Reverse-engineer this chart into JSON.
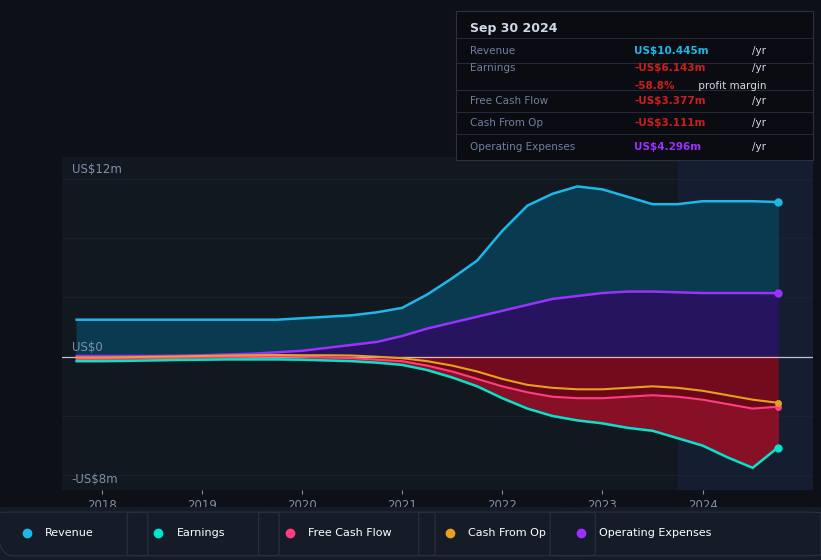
{
  "background_color": "#0d1117",
  "plot_bg_color": "#111820",
  "ylabel_top": "US$12m",
  "ylabel_bottom": "-US$8m",
  "ylabel_zero": "US$0",
  "x_ticks": [
    2018,
    2019,
    2020,
    2021,
    2022,
    2023,
    2024
  ],
  "x_min": 2017.6,
  "x_max": 2025.1,
  "y_min": -9.0,
  "y_max": 13.5,
  "years": [
    2017.75,
    2018.0,
    2018.25,
    2018.5,
    2018.75,
    2019.0,
    2019.25,
    2019.5,
    2019.75,
    2020.0,
    2020.25,
    2020.5,
    2020.75,
    2021.0,
    2021.25,
    2021.5,
    2021.75,
    2022.0,
    2022.25,
    2022.5,
    2022.75,
    2023.0,
    2023.25,
    2023.5,
    2023.75,
    2024.0,
    2024.25,
    2024.5,
    2024.75
  ],
  "revenue": [
    2.5,
    2.5,
    2.5,
    2.5,
    2.5,
    2.5,
    2.5,
    2.5,
    2.5,
    2.6,
    2.7,
    2.8,
    3.0,
    3.3,
    4.2,
    5.3,
    6.5,
    8.5,
    10.2,
    11.0,
    11.5,
    11.3,
    10.8,
    10.3,
    10.3,
    10.5,
    10.5,
    10.5,
    10.445
  ],
  "op_expenses": [
    0.05,
    0.05,
    0.05,
    0.05,
    0.07,
    0.1,
    0.15,
    0.2,
    0.3,
    0.4,
    0.6,
    0.8,
    1.0,
    1.4,
    1.9,
    2.3,
    2.7,
    3.1,
    3.5,
    3.9,
    4.1,
    4.3,
    4.4,
    4.4,
    4.35,
    4.3,
    4.3,
    4.3,
    4.296
  ],
  "earnings": [
    -0.3,
    -0.3,
    -0.28,
    -0.25,
    -0.22,
    -0.2,
    -0.18,
    -0.18,
    -0.18,
    -0.2,
    -0.25,
    -0.3,
    -0.4,
    -0.55,
    -0.9,
    -1.4,
    -2.0,
    -2.8,
    -3.5,
    -4.0,
    -4.3,
    -4.5,
    -4.8,
    -5.0,
    -5.5,
    -6.0,
    -6.8,
    -7.5,
    -6.143
  ],
  "free_cash_flow": [
    -0.15,
    -0.15,
    -0.13,
    -0.1,
    -0.08,
    -0.05,
    -0.02,
    0.0,
    0.02,
    0.0,
    -0.05,
    -0.1,
    -0.2,
    -0.3,
    -0.6,
    -1.0,
    -1.5,
    -2.0,
    -2.4,
    -2.7,
    -2.8,
    -2.8,
    -2.7,
    -2.6,
    -2.7,
    -2.9,
    -3.2,
    -3.5,
    -3.377
  ],
  "cash_from_op": [
    -0.05,
    -0.05,
    -0.03,
    0.0,
    0.02,
    0.05,
    0.08,
    0.1,
    0.12,
    0.1,
    0.1,
    0.08,
    0.0,
    -0.1,
    -0.3,
    -0.6,
    -1.0,
    -1.5,
    -1.9,
    -2.1,
    -2.2,
    -2.2,
    -2.1,
    -2.0,
    -2.1,
    -2.3,
    -2.6,
    -2.9,
    -3.111
  ],
  "revenue_color": "#1eb8e8",
  "earnings_color": "#00e5cc",
  "fcf_color": "#ff3d7f",
  "cop_color": "#e8a020",
  "opex_color": "#9b30ff",
  "revenue_fill": "#0a3a50",
  "opex_fill": "#2a1060",
  "negative_fill": "#6b0818",
  "grid_color": "#1e2535",
  "text_color_light": "#8090a8",
  "highlight_color": "#151e30",
  "highlight_x_start": 2023.75,
  "legend_bg": "#151c28",
  "legend_border": "#2a3348",
  "table_bg": "#0a0c12",
  "table_border": "#2a3040",
  "title": "Sep 30 2024",
  "table_label_color": "#7080a0",
  "table_value_red": "#cc2020",
  "table_value_blue": "#1eb8e8",
  "table_value_purple": "#9b30ff",
  "table_text_white": "#d0d8e8"
}
